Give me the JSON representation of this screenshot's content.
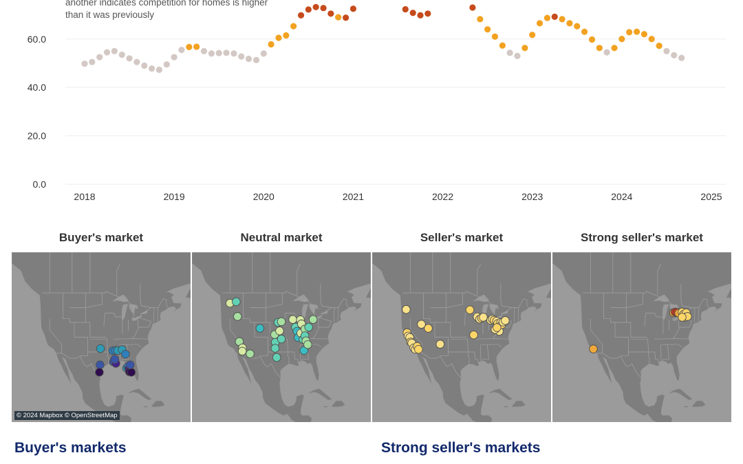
{
  "annotation": "another indicates competition for homes is higher than it was previously",
  "chart_data": {
    "type": "scatter",
    "y_ticks": [
      "0.0",
      "20.0",
      "40.0",
      "60.0"
    ],
    "x_ticks": [
      "2018",
      "2019",
      "2020",
      "2021",
      "2022",
      "2023",
      "2024",
      "2025"
    ],
    "xlim": [
      2018,
      2025
    ],
    "ylim": [
      0,
      73
    ],
    "grid": true,
    "category_colors": {
      "neutral": "#d3c8c4",
      "seller": "#f2a221",
      "strong": "#c64b1c"
    },
    "points": [
      {
        "x": 2018.0,
        "y": 49.8,
        "c": "neutral"
      },
      {
        "x": 2018.083,
        "y": 50.5,
        "c": "neutral"
      },
      {
        "x": 2018.167,
        "y": 52.5,
        "c": "neutral"
      },
      {
        "x": 2018.25,
        "y": 54.5,
        "c": "neutral"
      },
      {
        "x": 2018.333,
        "y": 55.0,
        "c": "neutral"
      },
      {
        "x": 2018.417,
        "y": 53.5,
        "c": "neutral"
      },
      {
        "x": 2018.5,
        "y": 52.0,
        "c": "neutral"
      },
      {
        "x": 2018.583,
        "y": 50.5,
        "c": "neutral"
      },
      {
        "x": 2018.667,
        "y": 49.0,
        "c": "neutral"
      },
      {
        "x": 2018.75,
        "y": 47.8,
        "c": "neutral"
      },
      {
        "x": 2018.833,
        "y": 47.3,
        "c": "neutral"
      },
      {
        "x": 2018.917,
        "y": 49.5,
        "c": "neutral"
      },
      {
        "x": 2019.0,
        "y": 52.5,
        "c": "neutral"
      },
      {
        "x": 2019.083,
        "y": 55.5,
        "c": "neutral"
      },
      {
        "x": 2019.167,
        "y": 56.7,
        "c": "seller"
      },
      {
        "x": 2019.25,
        "y": 56.8,
        "c": "seller"
      },
      {
        "x": 2019.333,
        "y": 55.0,
        "c": "neutral"
      },
      {
        "x": 2019.417,
        "y": 54.0,
        "c": "neutral"
      },
      {
        "x": 2019.5,
        "y": 54.2,
        "c": "neutral"
      },
      {
        "x": 2019.583,
        "y": 54.3,
        "c": "neutral"
      },
      {
        "x": 2019.667,
        "y": 54.0,
        "c": "neutral"
      },
      {
        "x": 2019.75,
        "y": 52.8,
        "c": "neutral"
      },
      {
        "x": 2019.833,
        "y": 51.8,
        "c": "neutral"
      },
      {
        "x": 2019.917,
        "y": 51.3,
        "c": "neutral"
      },
      {
        "x": 2020.0,
        "y": 54.0,
        "c": "neutral"
      },
      {
        "x": 2020.083,
        "y": 57.8,
        "c": "seller"
      },
      {
        "x": 2020.167,
        "y": 60.5,
        "c": "seller"
      },
      {
        "x": 2020.25,
        "y": 61.5,
        "c": "seller"
      },
      {
        "x": 2020.333,
        "y": 65.3,
        "c": "seller"
      },
      {
        "x": 2020.417,
        "y": 69.8,
        "c": "strong"
      },
      {
        "x": 2020.5,
        "y": 72.2,
        "c": "strong"
      },
      {
        "x": 2020.583,
        "y": 73.2,
        "c": "strong"
      },
      {
        "x": 2020.667,
        "y": 72.8,
        "c": "strong"
      },
      {
        "x": 2020.75,
        "y": 70.5,
        "c": "strong"
      },
      {
        "x": 2020.833,
        "y": 69.0,
        "c": "seller"
      },
      {
        "x": 2020.917,
        "y": 68.8,
        "c": "strong"
      },
      {
        "x": 2021.0,
        "y": 72.5,
        "c": "strong"
      },
      {
        "x": 2021.583,
        "y": 72.3,
        "c": "strong"
      },
      {
        "x": 2021.667,
        "y": 70.8,
        "c": "strong"
      },
      {
        "x": 2021.75,
        "y": 69.8,
        "c": "strong"
      },
      {
        "x": 2021.833,
        "y": 70.5,
        "c": "strong"
      },
      {
        "x": 2022.333,
        "y": 73.0,
        "c": "strong"
      },
      {
        "x": 2022.417,
        "y": 68.2,
        "c": "seller"
      },
      {
        "x": 2022.5,
        "y": 64.0,
        "c": "seller"
      },
      {
        "x": 2022.583,
        "y": 61.0,
        "c": "seller"
      },
      {
        "x": 2022.667,
        "y": 57.3,
        "c": "seller"
      },
      {
        "x": 2022.75,
        "y": 54.3,
        "c": "neutral"
      },
      {
        "x": 2022.833,
        "y": 53.0,
        "c": "neutral"
      },
      {
        "x": 2022.917,
        "y": 56.3,
        "c": "seller"
      },
      {
        "x": 2023.0,
        "y": 61.7,
        "c": "seller"
      },
      {
        "x": 2023.083,
        "y": 66.5,
        "c": "seller"
      },
      {
        "x": 2023.167,
        "y": 68.7,
        "c": "seller"
      },
      {
        "x": 2023.25,
        "y": 69.2,
        "c": "strong"
      },
      {
        "x": 2023.333,
        "y": 68.2,
        "c": "seller"
      },
      {
        "x": 2023.417,
        "y": 66.5,
        "c": "seller"
      },
      {
        "x": 2023.5,
        "y": 65.3,
        "c": "seller"
      },
      {
        "x": 2023.583,
        "y": 63.0,
        "c": "seller"
      },
      {
        "x": 2023.667,
        "y": 59.8,
        "c": "seller"
      },
      {
        "x": 2023.75,
        "y": 56.3,
        "c": "seller"
      },
      {
        "x": 2023.833,
        "y": 54.5,
        "c": "neutral"
      },
      {
        "x": 2023.917,
        "y": 56.3,
        "c": "seller"
      },
      {
        "x": 2024.0,
        "y": 60.0,
        "c": "seller"
      },
      {
        "x": 2024.083,
        "y": 62.8,
        "c": "seller"
      },
      {
        "x": 2024.167,
        "y": 63.0,
        "c": "seller"
      },
      {
        "x": 2024.25,
        "y": 62.0,
        "c": "seller"
      },
      {
        "x": 2024.333,
        "y": 60.0,
        "c": "seller"
      },
      {
        "x": 2024.417,
        "y": 57.2,
        "c": "seller"
      },
      {
        "x": 2024.5,
        "y": 55.0,
        "c": "neutral"
      },
      {
        "x": 2024.583,
        "y": 53.3,
        "c": "neutral"
      },
      {
        "x": 2024.667,
        "y": 52.2,
        "c": "neutral"
      }
    ]
  },
  "map_panels": [
    {
      "title": "Buyer's market",
      "attribution": "© 2024 Mapbox © OpenStreetMap",
      "dot_colors": [
        "#2e9bb5",
        "#2f7fbc",
        "#3a56a6",
        "#44228a",
        "#2f0c4e"
      ],
      "markers": [
        {
          "lon": -97.3,
          "lat": 33.9,
          "c": 0
        },
        {
          "lon": -91.8,
          "lat": 33.3,
          "c": 1
        },
        {
          "lon": -90.6,
          "lat": 33.4,
          "c": 1
        },
        {
          "lon": -89.5,
          "lat": 33.4,
          "c": 0
        },
        {
          "lon": -87.6,
          "lat": 33.6,
          "c": 0
        },
        {
          "lon": -86.1,
          "lat": 32.4,
          "c": 1
        },
        {
          "lon": -97.5,
          "lat": 29.5,
          "c": 2
        },
        {
          "lon": -97.8,
          "lat": 27.5,
          "c": 4
        },
        {
          "lon": -91.5,
          "lat": 30.3,
          "c": 2
        },
        {
          "lon": -90.4,
          "lat": 29.9,
          "c": 3
        },
        {
          "lon": -90.9,
          "lat": 31.0,
          "c": 2
        },
        {
          "lon": -85.6,
          "lat": 28.6,
          "c": 0
        },
        {
          "lon": -85.0,
          "lat": 29.1,
          "c": 1
        },
        {
          "lon": -84.6,
          "lat": 28.4,
          "c": 3
        },
        {
          "lon": -84.3,
          "lat": 27.6,
          "c": 4
        },
        {
          "lon": -83.5,
          "lat": 27.5,
          "c": 4
        },
        {
          "lon": -84.0,
          "lat": 29.5,
          "c": 2
        }
      ]
    },
    {
      "title": "Neutral market",
      "dot_colors": [
        "#d7e9a3",
        "#a7dfa0",
        "#63d1b4",
        "#3bbcc2"
      ],
      "markers": [
        {
          "lon": -120.0,
          "lat": 46.2,
          "c": 0
        },
        {
          "lon": -117.2,
          "lat": 46.6,
          "c": 2
        },
        {
          "lon": -116.6,
          "lat": 42.6,
          "c": 1
        },
        {
          "lon": -115.8,
          "lat": 35.8,
          "c": 1
        },
        {
          "lon": -114.4,
          "lat": 34.1,
          "c": 0
        },
        {
          "lon": -114.5,
          "lat": 33.2,
          "c": 0
        },
        {
          "lon": -111.0,
          "lat": 32.5,
          "c": 1
        },
        {
          "lon": -106.6,
          "lat": 39.4,
          "c": 3
        },
        {
          "lon": -100.0,
          "lat": 37.7,
          "c": 1
        },
        {
          "lon": -99.7,
          "lat": 35.6,
          "c": 2
        },
        {
          "lon": -99.8,
          "lat": 34.0,
          "c": 2
        },
        {
          "lon": -99.1,
          "lat": 31.5,
          "c": 2
        },
        {
          "lon": -98.5,
          "lat": 41.0,
          "c": 2
        },
        {
          "lon": -97.0,
          "lat": 41.2,
          "c": 1
        },
        {
          "lon": -97.8,
          "lat": 38.7,
          "c": 0
        },
        {
          "lon": -97.0,
          "lat": 36.5,
          "c": 2
        },
        {
          "lon": -91.9,
          "lat": 41.8,
          "c": 0
        },
        {
          "lon": -90.7,
          "lat": 39.7,
          "c": 2
        },
        {
          "lon": -90.0,
          "lat": 38.6,
          "c": 3
        },
        {
          "lon": -89.5,
          "lat": 36.9,
          "c": 3
        },
        {
          "lon": -88.5,
          "lat": 41.7,
          "c": 0
        },
        {
          "lon": -88.0,
          "lat": 40.6,
          "c": 0
        },
        {
          "lon": -88.3,
          "lat": 38.1,
          "c": 0
        },
        {
          "lon": -87.3,
          "lat": 36.4,
          "c": 2
        },
        {
          "lon": -86.5,
          "lat": 39.2,
          "c": 1
        },
        {
          "lon": -86.9,
          "lat": 33.4,
          "c": 3
        },
        {
          "lon": -86.5,
          "lat": 37.4,
          "c": 2
        },
        {
          "lon": -86.0,
          "lat": 36.0,
          "c": 1
        },
        {
          "lon": -85.2,
          "lat": 35.0,
          "c": 1
        },
        {
          "lon": -84.8,
          "lat": 39.7,
          "c": 2
        },
        {
          "lon": -82.8,
          "lat": 41.8,
          "c": 1
        }
      ]
    },
    {
      "title": "Seller's market",
      "dot_colors": [
        "#fbe28a",
        "#fbd567"
      ],
      "markers": [
        {
          "lon": -121.8,
          "lat": 44.5,
          "c": 0
        },
        {
          "lon": -121.4,
          "lat": 38.2,
          "c": 1
        },
        {
          "lon": -120.9,
          "lat": 37.3,
          "c": 0
        },
        {
          "lon": -120.2,
          "lat": 36.9,
          "c": 0
        },
        {
          "lon": -119.8,
          "lat": 35.7,
          "c": 1
        },
        {
          "lon": -119.3,
          "lat": 35.4,
          "c": 0
        },
        {
          "lon": -118.4,
          "lat": 34.1,
          "c": 0
        },
        {
          "lon": -117.7,
          "lat": 33.7,
          "c": 0
        },
        {
          "lon": -116.9,
          "lat": 34.5,
          "c": 1
        },
        {
          "lon": -116.3,
          "lat": 33.7,
          "c": 1
        },
        {
          "lon": -115.0,
          "lat": 40.5,
          "c": 0
        },
        {
          "lon": -111.9,
          "lat": 39.4,
          "c": 1
        },
        {
          "lon": -106.6,
          "lat": 35.1,
          "c": 0
        },
        {
          "lon": -93.3,
          "lat": 44.4,
          "c": 1
        },
        {
          "lon": -90.0,
          "lat": 42.5,
          "c": 0
        },
        {
          "lon": -88.9,
          "lat": 41.9,
          "c": 0
        },
        {
          "lon": -88.1,
          "lat": 42.2,
          "c": 1
        },
        {
          "lon": -87.3,
          "lat": 42.4,
          "c": 0
        },
        {
          "lon": -91.6,
          "lat": 37.6,
          "c": 1
        },
        {
          "lon": -84.0,
          "lat": 41.6,
          "c": 0
        },
        {
          "lon": -83.3,
          "lat": 41.9,
          "c": 0
        },
        {
          "lon": -82.5,
          "lat": 41.6,
          "c": 1
        },
        {
          "lon": -81.4,
          "lat": 41.3,
          "c": 0
        },
        {
          "lon": -80.9,
          "lat": 40.7,
          "c": 1
        },
        {
          "lon": -80.5,
          "lat": 39.5,
          "c": 1
        },
        {
          "lon": -80.2,
          "lat": 38.6,
          "c": 0
        },
        {
          "lon": -79.5,
          "lat": 41.0,
          "c": 0
        },
        {
          "lon": -79.0,
          "lat": 40.4,
          "c": 1
        },
        {
          "lon": -78.5,
          "lat": 41.1,
          "c": 0
        },
        {
          "lon": -77.5,
          "lat": 41.5,
          "c": 0
        },
        {
          "lon": -82.0,
          "lat": 39.1,
          "c": 0
        },
        {
          "lon": -81.2,
          "lat": 39.6,
          "c": 1
        }
      ]
    },
    {
      "title": "Strong seller's market",
      "dot_colors": [
        "#fbd567",
        "#f0a93a",
        "#d0381b"
      ],
      "markers": [
        {
          "lon": -118.7,
          "lat": 33.8,
          "c": 1
        },
        {
          "lon": -82.8,
          "lat": 43.6,
          "c": 1
        },
        {
          "lon": -82.1,
          "lat": 43.8,
          "c": 2
        },
        {
          "lon": -81.3,
          "lat": 43.7,
          "c": 2
        },
        {
          "lon": -80.5,
          "lat": 43.5,
          "c": 1
        },
        {
          "lon": -79.0,
          "lat": 43.8,
          "c": 0
        },
        {
          "lon": -78.3,
          "lat": 43.2,
          "c": 0
        },
        {
          "lon": -77.2,
          "lat": 43.6,
          "c": 0
        },
        {
          "lon": -77.7,
          "lat": 42.4,
          "c": 0
        },
        {
          "lon": -76.6,
          "lat": 42.6,
          "c": 0
        },
        {
          "lon": -79.0,
          "lat": 42.4,
          "c": 0
        }
      ]
    }
  ],
  "section_headings": {
    "left": "Buyer's markets",
    "right": "Strong seller's markets"
  }
}
